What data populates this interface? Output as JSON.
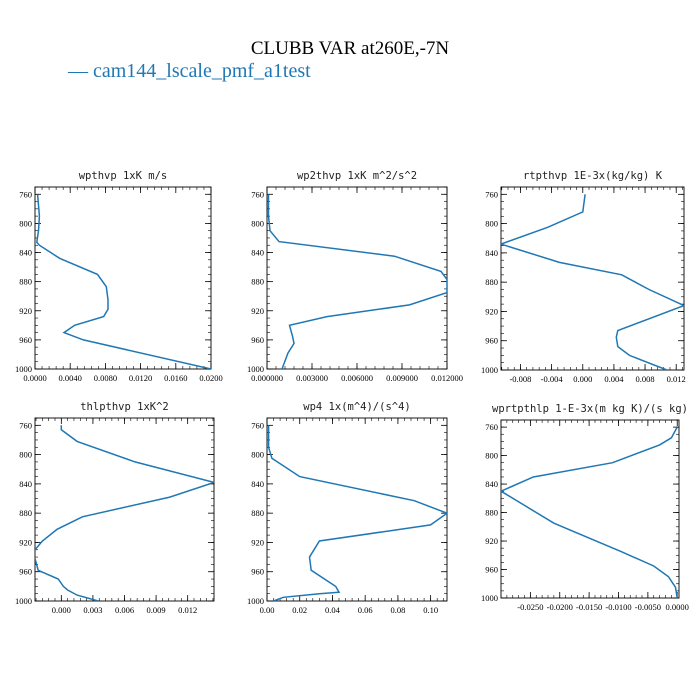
{
  "figure": {
    "title": "CLUBB VAR at260E,-7N",
    "legend": "— cam144_lscale_pmf_a1test",
    "line_color": "#1f77b4"
  },
  "chart_data": [
    {
      "type": "line",
      "title": "wpthvp   1xK m/s",
      "xlim": [
        0,
        0.02
      ],
      "ylim": [
        1000,
        750
      ],
      "xticks": [
        "0.0000",
        "0.0040",
        "0.0080",
        "0.0120",
        "0.0160",
        "0.0200"
      ],
      "xtick_values": [
        0,
        0.004,
        0.008,
        0.012,
        0.016,
        0.02
      ],
      "yticks": [
        760,
        800,
        840,
        880,
        920,
        960,
        1000
      ],
      "series": [
        {
          "x": [
            0.0003,
            0.0005,
            0.0004,
            0.0002,
            0.0005,
            0.0028,
            0.0071,
            0.0081,
            0.0083,
            0.0083,
            0.0078,
            0.0045,
            0.0033,
            0.0055,
            0.02
          ],
          "y": [
            760,
            790,
            810,
            826,
            830,
            848,
            870,
            887,
            905,
            918,
            928,
            940,
            950,
            960,
            1000
          ]
        }
      ]
    },
    {
      "type": "line",
      "title": "wp2thvp   1xK m^2/s^2",
      "xlim": [
        0,
        0.012
      ],
      "ylim": [
        1000,
        750
      ],
      "xticks": [
        "0.000000",
        "0.003000",
        "0.006000",
        "0.009000",
        "0.012000"
      ],
      "xtick_values": [
        0,
        0.003,
        0.006,
        0.009,
        0.012
      ],
      "yticks": [
        760,
        800,
        840,
        880,
        920,
        960,
        1000
      ],
      "series": [
        {
          "x": [
            0.0001,
            0.0001,
            0.0002,
            0.0008,
            0.0085,
            0.0116,
            0.012,
            0.012,
            0.0095,
            0.004,
            0.0015,
            0.0017,
            0.0018,
            0.0014,
            0.001
          ],
          "y": [
            760,
            790,
            810,
            825,
            845,
            866,
            877,
            895,
            912,
            928,
            940,
            955,
            965,
            978,
            1000
          ]
        }
      ]
    },
    {
      "type": "line",
      "title": "rtpthvp   1E-3x(kg/kg) K",
      "xlim": [
        -0.0105,
        0.013
      ],
      "ylim": [
        1000,
        750
      ],
      "xticks": [
        "-0.008",
        "-0.004",
        "0.000",
        "0.004",
        "0.008",
        "0.012"
      ],
      "xtick_values": [
        -0.008,
        -0.004,
        0,
        0.004,
        0.008,
        0.012
      ],
      "yticks": [
        760,
        800,
        840,
        880,
        920,
        960,
        1000
      ],
      "series": [
        {
          "x": [
            0.0003,
            0.0,
            -0.0045,
            -0.0105,
            -0.003,
            0.005,
            0.0085,
            0.013,
            0.0045,
            0.0043,
            0.0045,
            0.006,
            0.0108
          ],
          "y": [
            760,
            784,
            805,
            828,
            853,
            870,
            890,
            912,
            946,
            955,
            968,
            980,
            1000
          ]
        }
      ]
    },
    {
      "type": "line",
      "title": "thlpthvp   1xK^2",
      "xlim": [
        -0.0025,
        0.0145
      ],
      "ylim": [
        1000,
        750
      ],
      "xticks": [
        "0.000",
        "0.003",
        "0.006",
        "0.009",
        "0.012"
      ],
      "xtick_values": [
        0,
        0.003,
        0.006,
        0.009,
        0.012
      ],
      "yticks": [
        760,
        800,
        840,
        880,
        920,
        960,
        1000
      ],
      "series": [
        {
          "x": [
            0.0,
            0.0,
            0.0015,
            0.007,
            0.0145,
            0.0103,
            0.002,
            -0.0004,
            -0.0018,
            -0.0025,
            -0.0025,
            -0.0022,
            -0.0003,
            0.0002,
            0.0006,
            0.0015,
            0.0035
          ],
          "y": [
            760,
            766,
            782,
            810,
            838,
            858,
            885,
            902,
            918,
            930,
            942,
            958,
            970,
            980,
            985,
            992,
            1000
          ]
        }
      ]
    },
    {
      "type": "line",
      "title": "wp4   1x(m^4)/(s^4)",
      "xlim": [
        0,
        0.11
      ],
      "ylim": [
        1000,
        750
      ],
      "xticks": [
        "0.00",
        "0.02",
        "0.04",
        "0.06",
        "0.08",
        "0.10"
      ],
      "xtick_values": [
        0,
        0.02,
        0.04,
        0.06,
        0.08,
        0.1
      ],
      "yticks": [
        760,
        800,
        840,
        880,
        920,
        960,
        1000
      ],
      "series": [
        {
          "x": [
            0.001,
            0.001,
            0.003,
            0.02,
            0.09,
            0.11,
            0.1,
            0.032,
            0.026,
            0.027,
            0.042,
            0.044,
            0.032,
            0.01,
            0.004
          ],
          "y": [
            760,
            790,
            805,
            830,
            863,
            880,
            896,
            918,
            940,
            958,
            980,
            988,
            990,
            995,
            1000
          ]
        }
      ]
    },
    {
      "type": "line",
      "title": "wprtpthlp   1-E-3x(m kg K)/(s kg)",
      "xlim": [
        -0.03,
        0.0003
      ],
      "ylim": [
        1000,
        750
      ],
      "xticks": [
        "-0.0250",
        "-0.0200",
        "-0.0150",
        "-0.0100",
        "-0.0050",
        "0.0000"
      ],
      "xtick_values": [
        -0.025,
        -0.02,
        -0.015,
        -0.01,
        -0.005,
        0
      ],
      "yticks": [
        760,
        800,
        840,
        880,
        920,
        960,
        1000
      ],
      "series": [
        {
          "x": [
            0.0,
            -0.001,
            -0.003,
            -0.011,
            -0.0245,
            -0.03,
            -0.026,
            -0.021,
            -0.0095,
            -0.004,
            -0.0015,
            -0.0003,
            0.0
          ],
          "y": [
            760,
            775,
            785,
            810,
            830,
            850,
            870,
            895,
            935,
            955,
            970,
            985,
            1000
          ]
        }
      ]
    }
  ]
}
